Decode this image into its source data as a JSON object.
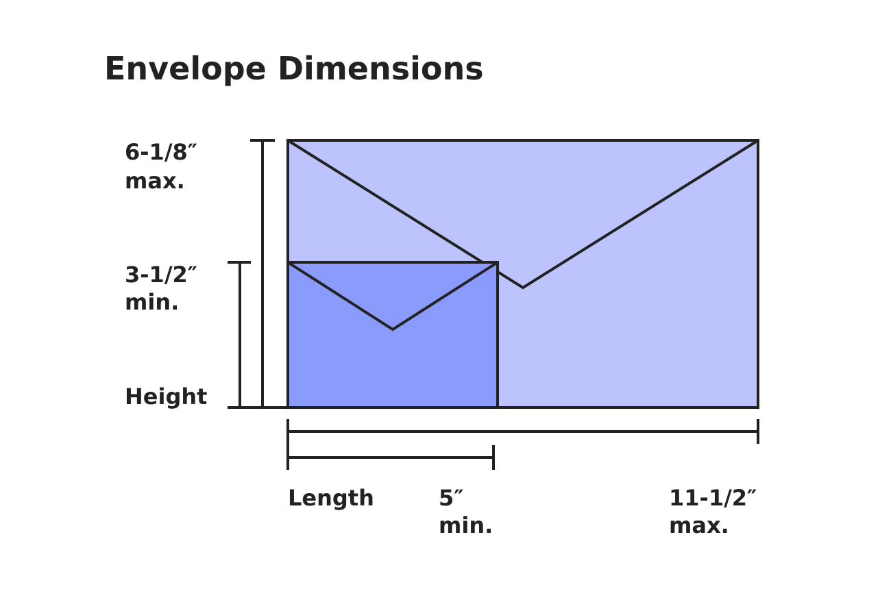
{
  "title": "Envelope Dimensions",
  "height": {
    "label": "Height",
    "max": {
      "value": "6-1/8″",
      "note": "max."
    },
    "min": {
      "value": "3-1/2″",
      "note": "min."
    }
  },
  "length": {
    "label": "Length",
    "min": {
      "value": "5″",
      "note": "min."
    },
    "max": {
      "value": "11-1/2″",
      "note": "max."
    }
  }
}
